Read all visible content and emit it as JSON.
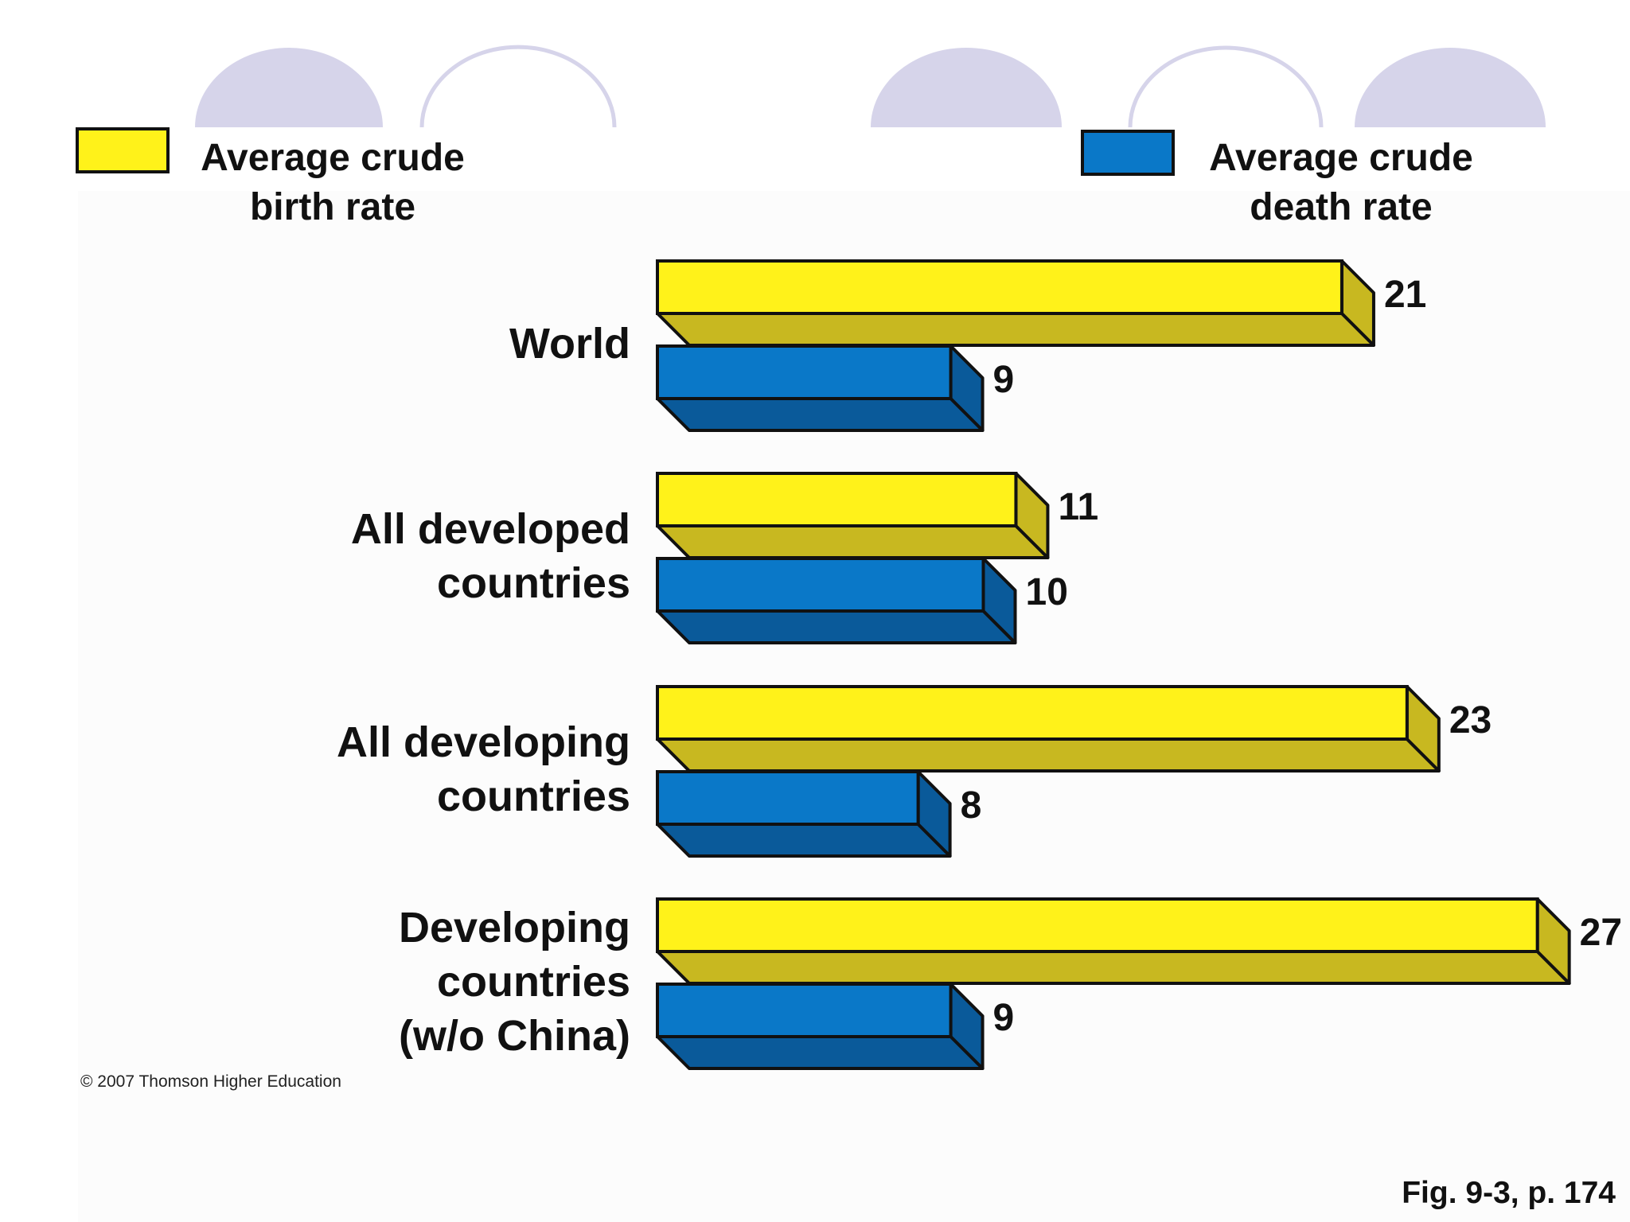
{
  "legend": [
    {
      "label_line1": "Average crude",
      "label_line2": "birth rate",
      "color": "#FFF21A"
    },
    {
      "label_line1": "Average crude",
      "label_line2": "death rate",
      "color": "#0A78C8"
    }
  ],
  "copyright": "© 2007 Thomson Higher Education",
  "figure_ref": "Fig. 9-3, p. 174",
  "colors": {
    "birth_face": "#FFF21A",
    "birth_side": "#C8B820",
    "death_face": "#0A78C8",
    "death_side": "#0A5A9A",
    "decor": "#D6D4EA"
  },
  "chart_data": {
    "type": "bar",
    "orientation": "horizontal",
    "categories": [
      "World",
      "All developed countries",
      "All developing countries",
      "Developing countries (w/o China)"
    ],
    "category_lines": [
      [
        "World"
      ],
      [
        "All developed",
        "countries"
      ],
      [
        "All developing",
        "countries"
      ],
      [
        "Developing",
        "countries",
        "(w/o China)"
      ]
    ],
    "series": [
      {
        "name": "Average crude birth rate",
        "values": [
          21,
          11,
          23,
          27
        ]
      },
      {
        "name": "Average crude death rate",
        "values": [
          9,
          10,
          8,
          9
        ]
      }
    ],
    "title": "",
    "xlabel": "",
    "ylabel": "",
    "grid": false,
    "legend_position": "top"
  }
}
